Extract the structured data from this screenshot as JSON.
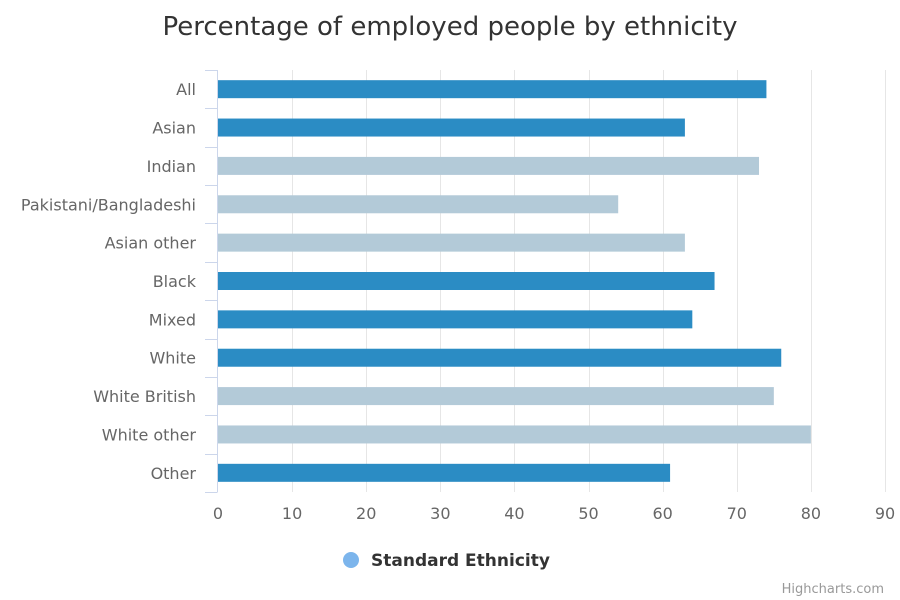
{
  "chart_data": {
    "type": "bar",
    "orientation": "horizontal",
    "title": "Percentage of employed people by ethnicity",
    "categories": [
      "All",
      "Asian",
      "Indian",
      "Pakistani/Bangladeshi",
      "Asian other",
      "Black",
      "Mixed",
      "White",
      "White British",
      "White other",
      "Other"
    ],
    "values": [
      74,
      63,
      73,
      54,
      63,
      67,
      64,
      76,
      75,
      80,
      61
    ],
    "bar_kinds": [
      "standard",
      "standard",
      "sub",
      "sub",
      "sub",
      "standard",
      "standard",
      "standard",
      "sub",
      "sub",
      "standard"
    ],
    "xlim": [
      0,
      90
    ],
    "xticks": [
      0,
      10,
      20,
      30,
      40,
      50,
      60,
      70,
      80,
      90
    ],
    "grid": true,
    "legend": {
      "position": "bottom-center",
      "items": [
        {
          "label": "Standard Ethnicity",
          "color": "#7cb5ec"
        }
      ]
    }
  },
  "colors": {
    "standard": "#2b8cc4",
    "sub": "#b3cad8",
    "legend_marker": "#7cb5ec",
    "grid": "#e6e6e6",
    "axis": "#ccd6eb"
  },
  "credits": "Highcharts.com"
}
